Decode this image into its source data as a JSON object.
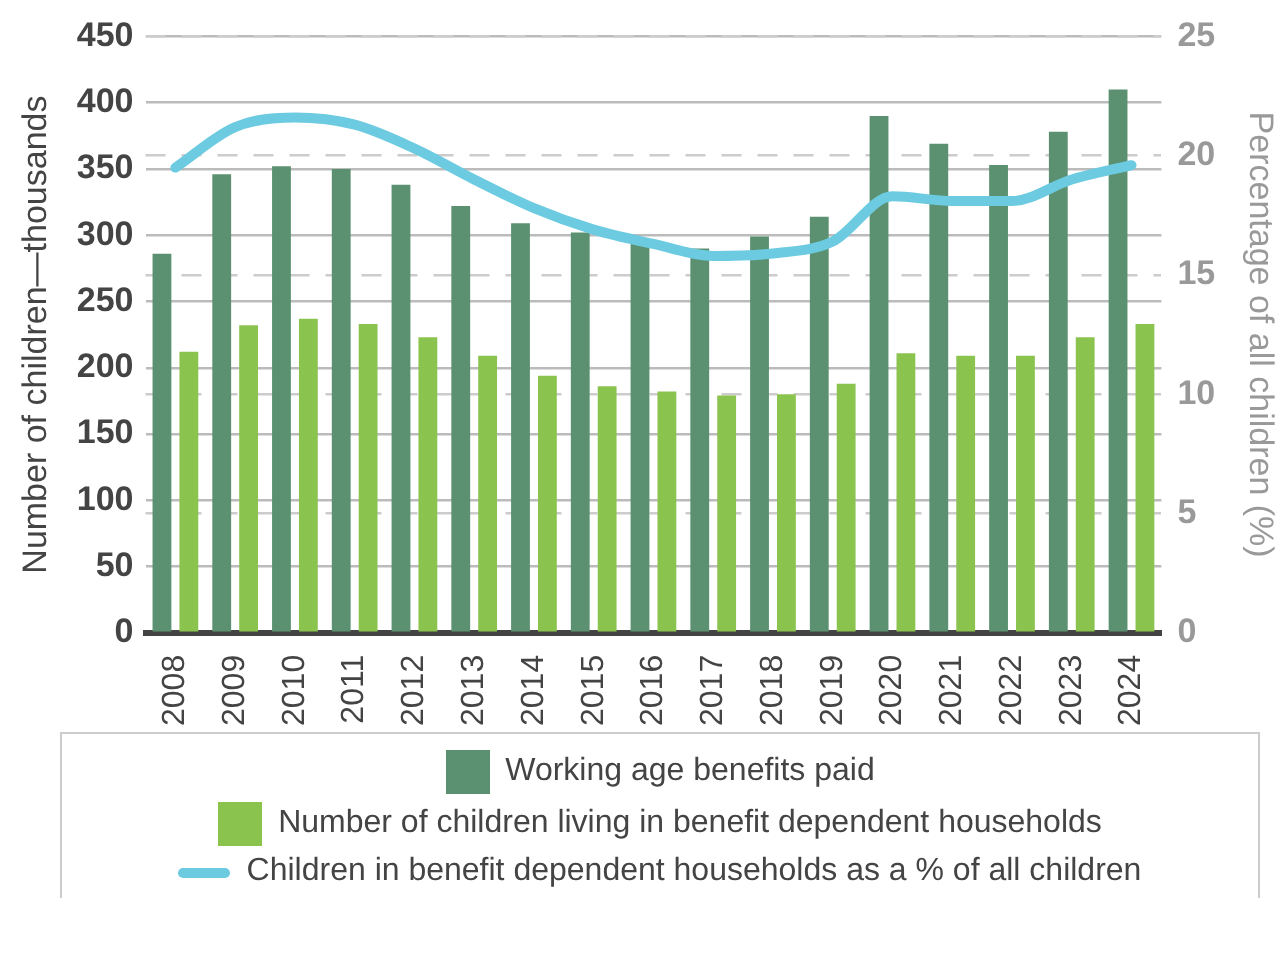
{
  "chart_data": {
    "type": "bar",
    "ylabel": "Number of children—thousands",
    "y2label": "Percentage of all children (%)",
    "categories": [
      "2008",
      "2009",
      "2010",
      "2011",
      "2012",
      "2013",
      "2014",
      "2015",
      "2016",
      "2017",
      "2018",
      "2019",
      "2020",
      "2021",
      "2022",
      "2023",
      "2024"
    ],
    "series": [
      {
        "name": "Working age benefits paid",
        "color": "#5b9170",
        "values": [
          286,
          346,
          352,
          350,
          338,
          322,
          309,
          302,
          295,
          290,
          299,
          314,
          390,
          369,
          353,
          378,
          410
        ]
      },
      {
        "name": "Number of children living in benefit dependent households",
        "color": "#8bc34f",
        "values": [
          212,
          232,
          237,
          233,
          223,
          209,
          194,
          186,
          182,
          179,
          180,
          188,
          211,
          209,
          209,
          223,
          233
        ]
      },
      {
        "name": "Children in benefit dependent households as a % of all children",
        "type": "line",
        "axis": "y2",
        "color": "#6ccbe0",
        "values": [
          19.5,
          21.2,
          21.6,
          21.3,
          20.3,
          19.0,
          17.8,
          16.9,
          16.3,
          15.8,
          15.9,
          16.4,
          18.3,
          18.1,
          18.1,
          19.0,
          19.6
        ]
      }
    ],
    "ylim": [
      0,
      450
    ],
    "yticks": [
      0,
      50,
      100,
      150,
      200,
      250,
      300,
      350,
      400,
      450
    ],
    "y2lim": [
      0,
      25
    ],
    "y2ticks": [
      0,
      5,
      10,
      15,
      20,
      25
    ],
    "grid": true,
    "legend": "bottom",
    "marker": "none"
  }
}
